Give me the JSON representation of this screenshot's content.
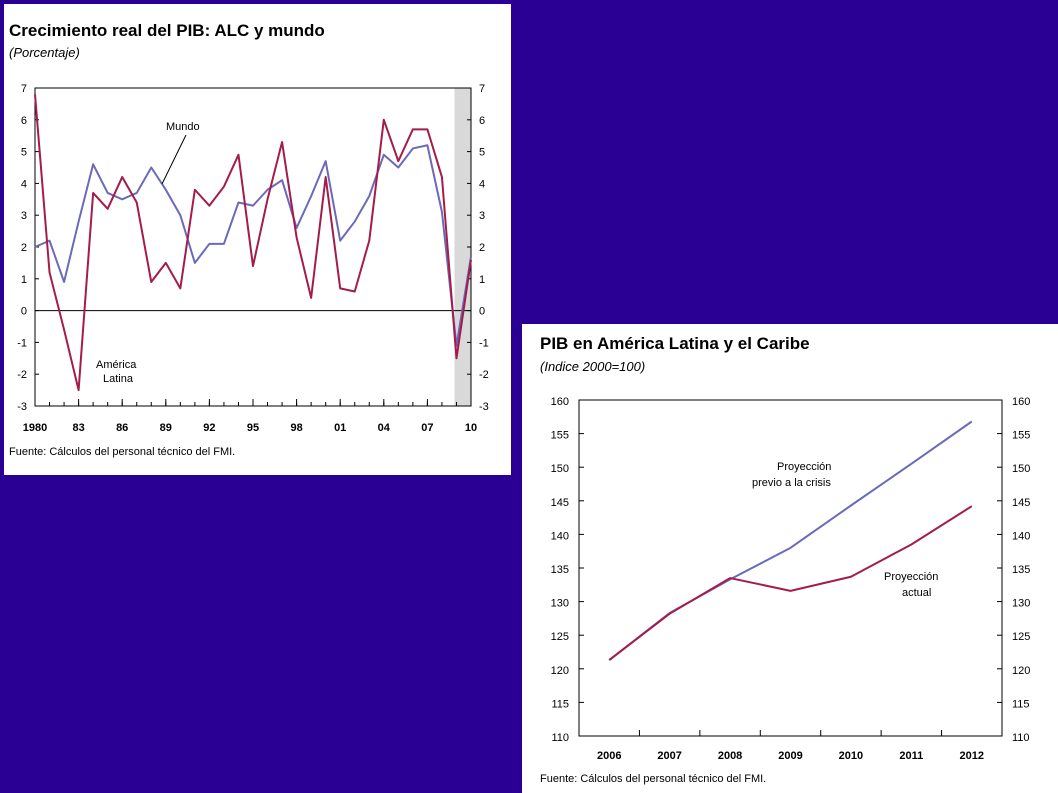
{
  "colors": {
    "background": "#2a0094",
    "panel": "#ffffff",
    "mundo": "#6a6ab8",
    "alc": "#a31c4c",
    "shade": "#d9d9d9"
  },
  "chart1": {
    "title": "Crecimiento real del PIB: ALC y mundo",
    "subtitle": "(Porcentaje)",
    "source": "Fuente: Cálculos del personal técnico del FMI.",
    "annotations": {
      "mundo": "Mundo",
      "alc_line1": "América",
      "alc_line2": "Latina"
    }
  },
  "chart2": {
    "title": "PIB en América Latina y el Caribe",
    "subtitle": "(Indice 2000=100)",
    "source": "Fuente: Cálculos del personal técnico del FMI.",
    "annotations": {
      "pre_line1": "Proyección",
      "pre_line2": "previo a la crisis",
      "act_line1": "Proyección",
      "act_line2": "actual"
    }
  },
  "chart_data": [
    {
      "type": "line",
      "title": "Crecimiento real del PIB: ALC y mundo",
      "subtitle": "(Porcentaje)",
      "x": [
        1980,
        1981,
        1982,
        1983,
        1984,
        1985,
        1986,
        1987,
        1988,
        1989,
        1990,
        1991,
        1992,
        1993,
        1994,
        1995,
        1996,
        1997,
        1998,
        1999,
        2000,
        2001,
        2002,
        2003,
        2004,
        2005,
        2006,
        2007,
        2008,
        2009,
        2010
      ],
      "x_tick_labels": [
        "1980",
        "83",
        "86",
        "89",
        "92",
        "95",
        "98",
        "01",
        "04",
        "07",
        "10"
      ],
      "x_tick_values": [
        1980,
        1983,
        1986,
        1989,
        1992,
        1995,
        1998,
        2001,
        2004,
        2007,
        2010
      ],
      "ylim": [
        -3,
        7
      ],
      "y_ticks": [
        -3,
        -2,
        -1,
        0,
        1,
        2,
        3,
        4,
        5,
        6,
        7
      ],
      "shaded_region": [
        2009,
        2010
      ],
      "series": [
        {
          "name": "Mundo",
          "color": "#6a6ab8",
          "values": [
            2.0,
            2.2,
            0.9,
            2.8,
            4.6,
            3.7,
            3.5,
            3.7,
            4.5,
            3.8,
            3.0,
            1.5,
            2.1,
            2.1,
            3.4,
            3.3,
            3.8,
            4.1,
            2.6,
            3.6,
            4.7,
            2.2,
            2.8,
            3.6,
            4.9,
            4.5,
            5.1,
            5.2,
            3.1,
            -1.1,
            1.7
          ]
        },
        {
          "name": "América Latina",
          "color": "#a31c4c",
          "values": [
            6.8,
            1.2,
            -0.6,
            -2.5,
            3.7,
            3.2,
            4.2,
            3.4,
            0.9,
            1.5,
            0.7,
            3.8,
            3.3,
            3.9,
            4.9,
            1.4,
            3.5,
            5.3,
            2.3,
            0.4,
            4.2,
            0.7,
            0.6,
            2.2,
            6.0,
            4.7,
            5.7,
            5.7,
            4.2,
            -1.5,
            1.6
          ]
        }
      ]
    },
    {
      "type": "line",
      "title": "PIB en América Latina y el Caribe",
      "subtitle": "(Indice 2000=100)",
      "x": [
        2006,
        2007,
        2008,
        2009,
        2010,
        2011,
        2012
      ],
      "x_tick_labels": [
        "2006",
        "2007",
        "2008",
        "2009",
        "2010",
        "2011",
        "2012"
      ],
      "ylim": [
        110,
        160
      ],
      "y_ticks": [
        110,
        115,
        120,
        125,
        130,
        135,
        140,
        145,
        150,
        155,
        160
      ],
      "series": [
        {
          "name": "Proyección previo a la crisis",
          "color": "#6a6ab8",
          "values": [
            121.3,
            128.3,
            133.3,
            138.0,
            144.3,
            150.5,
            156.8
          ]
        },
        {
          "name": "Proyección actual",
          "color": "#a31c4c",
          "values": [
            121.3,
            128.2,
            133.5,
            131.6,
            133.7,
            138.5,
            144.2
          ]
        }
      ]
    }
  ]
}
